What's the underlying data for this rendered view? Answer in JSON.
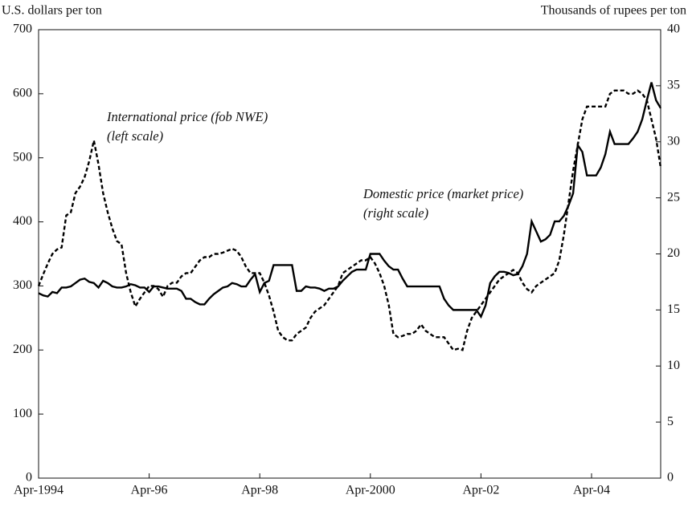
{
  "chart_data": {
    "type": "line",
    "y_label": "U.S. dollars per ton",
    "y2_label": "Thousands of rupees per ton",
    "categories": [
      "Apr-1994",
      null,
      null,
      null,
      null,
      null,
      null,
      null,
      null,
      null,
      null,
      null,
      null,
      null,
      null,
      null,
      null,
      null,
      null,
      null,
      null,
      null,
      null,
      null,
      "Apr-96",
      null,
      null,
      null,
      null,
      null,
      null,
      null,
      null,
      null,
      null,
      null,
      null,
      null,
      null,
      null,
      null,
      null,
      null,
      null,
      null,
      null,
      null,
      null,
      "Apr-98",
      null,
      null,
      null,
      null,
      null,
      null,
      null,
      null,
      null,
      null,
      null,
      null,
      null,
      null,
      null,
      null,
      null,
      null,
      null,
      null,
      null,
      null,
      null,
      "Apr-2000",
      null,
      null,
      null,
      null,
      null,
      null,
      null,
      null,
      null,
      null,
      null,
      null,
      null,
      null,
      null,
      null,
      null,
      null,
      null,
      null,
      null,
      null,
      null,
      "Apr-02",
      null,
      null,
      null,
      null,
      null,
      null,
      null,
      null,
      null,
      null,
      null,
      null,
      null,
      null,
      null,
      null,
      null,
      null,
      null,
      null,
      null,
      null,
      null,
      "Apr-04",
      null,
      null,
      null,
      null,
      null,
      null,
      null,
      null,
      null,
      null,
      null,
      null,
      null,
      null,
      null
    ],
    "ylim": [
      0,
      700
    ],
    "yticks": [
      0,
      100,
      200,
      300,
      400,
      500,
      600,
      700
    ],
    "y2lim": [
      0,
      40
    ],
    "y2ticks": [
      0,
      5,
      10,
      15,
      20,
      25,
      30,
      35,
      40
    ],
    "series": [
      {
        "name": "International price (fob NWE)",
        "scale_note": "(left scale)",
        "color": "#000000",
        "dashed": true,
        "axis": "y",
        "values": [
          300,
          318,
          335,
          350,
          357,
          360,
          410,
          415,
          445,
          455,
          470,
          495,
          527,
          490,
          445,
          415,
          390,
          370,
          365,
          320,
          290,
          268,
          280,
          290,
          300,
          300,
          295,
          283,
          300,
          305,
          305,
          315,
          320,
          320,
          330,
          340,
          345,
          345,
          350,
          350,
          352,
          355,
          358,
          355,
          345,
          330,
          320,
          320,
          320,
          305,
          285,
          260,
          230,
          220,
          215,
          215,
          225,
          230,
          235,
          250,
          260,
          265,
          270,
          280,
          290,
          300,
          320,
          325,
          330,
          335,
          340,
          340,
          345,
          335,
          320,
          300,
          270,
          225,
          220,
          222,
          225,
          225,
          230,
          240,
          230,
          225,
          220,
          220,
          220,
          210,
          200,
          202,
          200,
          230,
          250,
          260,
          270,
          280,
          290,
          300,
          310,
          315,
          320,
          325,
          320,
          305,
          295,
          290,
          300,
          305,
          310,
          315,
          320,
          340,
          380,
          430,
          480,
          520,
          560,
          580,
          580,
          580,
          580,
          580,
          600,
          605,
          605,
          605,
          600,
          600,
          605,
          600,
          590,
          560,
          530,
          485
        ]
      },
      {
        "name": "Domestic price (market price)",
        "scale_note": "(right scale)",
        "color": "#000000",
        "dashed": false,
        "axis": "y2",
        "values": [
          16.5,
          16.3,
          16.2,
          16.6,
          16.5,
          17.0,
          17.0,
          17.1,
          17.4,
          17.7,
          17.8,
          17.5,
          17.4,
          17.0,
          17.6,
          17.4,
          17.1,
          17.0,
          17.0,
          17.1,
          17.3,
          17.2,
          17.0,
          17.0,
          16.6,
          17.1,
          17.1,
          17.0,
          16.9,
          16.9,
          16.9,
          16.7,
          16.0,
          16.0,
          15.7,
          15.5,
          15.5,
          16.0,
          16.4,
          16.7,
          17.0,
          17.1,
          17.4,
          17.3,
          17.1,
          17.1,
          17.7,
          18.2,
          16.6,
          17.4,
          17.6,
          19.0,
          19.0,
          19.0,
          19.0,
          19.0,
          16.7,
          16.7,
          17.1,
          17.0,
          17.0,
          16.9,
          16.7,
          16.9,
          16.9,
          17.1,
          17.6,
          18.0,
          18.4,
          18.6,
          18.6,
          18.6,
          20.0,
          20.0,
          20.0,
          19.4,
          18.9,
          18.6,
          18.6,
          17.8,
          17.1,
          17.1,
          17.1,
          17.1,
          17.1,
          17.1,
          17.1,
          17.1,
          16.0,
          15.4,
          15.0,
          15.0,
          15.0,
          15.0,
          15.0,
          15.0,
          14.4,
          15.4,
          17.4,
          18.0,
          18.4,
          18.4,
          18.3,
          18.1,
          18.2,
          18.9,
          20.0,
          22.9,
          22.0,
          21.1,
          21.3,
          21.7,
          22.9,
          22.9,
          23.4,
          24.3,
          25.4,
          29.7,
          29.1,
          27.0,
          27.0,
          27.0,
          27.7,
          28.9,
          30.9,
          29.8,
          29.8,
          29.8,
          29.8,
          30.3,
          30.9,
          32.0,
          33.7,
          35.3,
          33.7,
          33.0
        ]
      }
    ]
  }
}
